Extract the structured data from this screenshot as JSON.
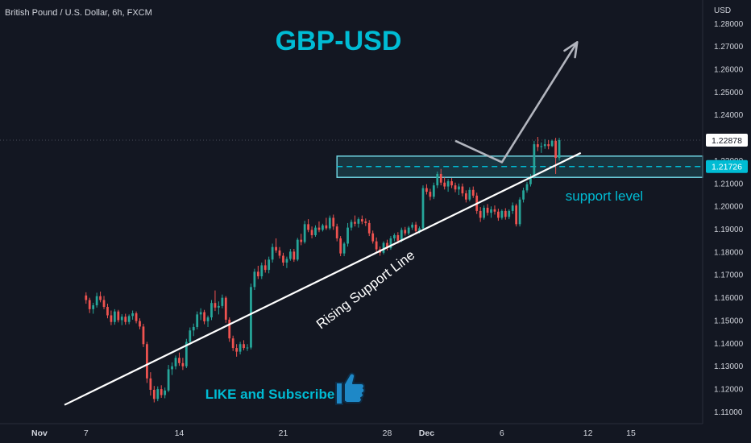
{
  "header": {
    "symbol": "British Pound / U.S. Dollar, 6h, FXCM"
  },
  "annotations": {
    "title": "GBP-USD",
    "support_level": "support level",
    "rising_support_line": "Rising Support Line",
    "like_subscribe": "LIKE and Subscribe"
  },
  "price_axis": {
    "currency": "USD",
    "current_price": "1.22878",
    "support_price": "1.21726"
  },
  "colors": {
    "background": "#131722",
    "up": "#26a69a",
    "down": "#ef5350",
    "title": "#00bcd4",
    "support_zone_border": "#6fd3e0",
    "support_zone_fill": "#1e4e5a",
    "current_price_tag": "#ffffff",
    "support_price_tag": "#00bcd4",
    "arrow": "#b2b5be",
    "trendline": "#ffffff",
    "thumb_icon": "#1e88c7"
  },
  "icons": {
    "like": "thumbs-up-icon",
    "projection": "arrow-up-right-icon"
  },
  "chart_data": {
    "type": "candlestick",
    "title": "GBP-USD",
    "ylabel": "USD",
    "ylim": [
      1.1075,
      1.2845
    ],
    "y_ticks": [
      1.11,
      1.12,
      1.13,
      1.14,
      1.15,
      1.16,
      1.17,
      1.18,
      1.19,
      1.2,
      1.21,
      1.22,
      1.23,
      1.24,
      1.25,
      1.26,
      1.27,
      1.28
    ],
    "x_ticks": [
      "Nov",
      "7",
      "14",
      "21",
      "28",
      "Dec",
      "6",
      "12",
      "15"
    ],
    "x_tick_index": [
      -13,
      0,
      26,
      55,
      84,
      95,
      116,
      140,
      152
    ],
    "x_range": [
      -24,
      172
    ],
    "current_price": 1.22878,
    "support_price": 1.21726,
    "support_zone": {
      "from_index": 70,
      "to_index": 172,
      "low": 1.2125,
      "high": 1.2218
    },
    "rising_support_line": {
      "from": [
        -6,
        1.1129
      ],
      "to": [
        138,
        1.2232
      ]
    },
    "projection": [
      [
        103,
        1.2285
      ],
      [
        116,
        1.2191
      ],
      [
        137,
        1.2717
      ]
    ],
    "candles": [
      [
        1.1608,
        1.1622,
        1.1572,
        1.1588
      ],
      [
        1.1588,
        1.1598,
        1.1531,
        1.1548
      ],
      [
        1.1548,
        1.1576,
        1.1528,
        1.1565
      ],
      [
        1.1565,
        1.162,
        1.1555,
        1.1605
      ],
      [
        1.1605,
        1.1625,
        1.1578,
        1.1588
      ],
      [
        1.1588,
        1.1606,
        1.1548,
        1.1558
      ],
      [
        1.1558,
        1.1572,
        1.1508,
        1.1521
      ],
      [
        1.1521,
        1.1542,
        1.1478,
        1.1492
      ],
      [
        1.1492,
        1.1548,
        1.148,
        1.1538
      ],
      [
        1.1538,
        1.1545,
        1.149,
        1.15
      ],
      [
        1.15,
        1.1526,
        1.1478,
        1.1515
      ],
      [
        1.1515,
        1.1528,
        1.148,
        1.1492
      ],
      [
        1.1492,
        1.1525,
        1.1482,
        1.1518
      ],
      [
        1.1518,
        1.1542,
        1.1502,
        1.153
      ],
      [
        1.153,
        1.1538,
        1.1486,
        1.1496
      ],
      [
        1.1496,
        1.1508,
        1.146,
        1.1472
      ],
      [
        1.1472,
        1.1484,
        1.1382,
        1.1395
      ],
      [
        1.1395,
        1.1405,
        1.1225,
        1.1245
      ],
      [
        1.1245,
        1.1272,
        1.117,
        1.1195
      ],
      [
        1.1195,
        1.1212,
        1.114,
        1.1155
      ],
      [
        1.1155,
        1.121,
        1.1145,
        1.1198
      ],
      [
        1.1198,
        1.1215,
        1.116,
        1.1172
      ],
      [
        1.1172,
        1.1205,
        1.1158,
        1.1192
      ],
      [
        1.1192,
        1.1304,
        1.1185,
        1.1285
      ],
      [
        1.1285,
        1.1315,
        1.126,
        1.1298
      ],
      [
        1.1298,
        1.1345,
        1.1285,
        1.1335
      ],
      [
        1.1335,
        1.1358,
        1.13,
        1.1312
      ],
      [
        1.1312,
        1.1335,
        1.1282,
        1.1298
      ],
      [
        1.1298,
        1.1418,
        1.129,
        1.1405
      ],
      [
        1.1405,
        1.1468,
        1.1392,
        1.1455
      ],
      [
        1.1455,
        1.1485,
        1.143,
        1.147
      ],
      [
        1.147,
        1.1538,
        1.146,
        1.1525
      ],
      [
        1.1525,
        1.1552,
        1.15,
        1.1535
      ],
      [
        1.1535,
        1.1545,
        1.1482,
        1.1495
      ],
      [
        1.1495,
        1.152,
        1.147,
        1.1512
      ],
      [
        1.1512,
        1.1588,
        1.15,
        1.1575
      ],
      [
        1.1575,
        1.163,
        1.154,
        1.1555
      ],
      [
        1.1555,
        1.1582,
        1.1525,
        1.1562
      ],
      [
        1.1562,
        1.1612,
        1.1552,
        1.1598
      ],
      [
        1.1598,
        1.1605,
        1.1488,
        1.1502
      ],
      [
        1.1502,
        1.1512,
        1.1405,
        1.142
      ],
      [
        1.142,
        1.1432,
        1.1365,
        1.1378
      ],
      [
        1.1378,
        1.1395,
        1.134,
        1.1362
      ],
      [
        1.1362,
        1.1405,
        1.135,
        1.1395
      ],
      [
        1.1395,
        1.1412,
        1.1368,
        1.1378
      ],
      [
        1.1378,
        1.1395,
        1.1365,
        1.138
      ],
      [
        1.138,
        1.166,
        1.1372,
        1.1645
      ],
      [
        1.1645,
        1.1725,
        1.1632,
        1.1712
      ],
      [
        1.1712,
        1.1738,
        1.168,
        1.1692
      ],
      [
        1.1692,
        1.1752,
        1.168,
        1.174
      ],
      [
        1.174,
        1.1765,
        1.1708,
        1.172
      ],
      [
        1.172,
        1.1778,
        1.1705,
        1.1765
      ],
      [
        1.1765,
        1.1835,
        1.1752,
        1.182
      ],
      [
        1.182,
        1.1858,
        1.1795,
        1.1805
      ],
      [
        1.1805,
        1.182,
        1.177,
        1.1782
      ],
      [
        1.1782,
        1.1795,
        1.1738,
        1.1752
      ],
      [
        1.1752,
        1.1778,
        1.1728,
        1.1768
      ],
      [
        1.1768,
        1.1812,
        1.176,
        1.18
      ],
      [
        1.18,
        1.1812,
        1.1755,
        1.1765
      ],
      [
        1.1765,
        1.186,
        1.1758,
        1.1852
      ],
      [
        1.1852,
        1.1878,
        1.1828,
        1.1842
      ],
      [
        1.1842,
        1.1935,
        1.1835,
        1.192
      ],
      [
        1.192,
        1.1942,
        1.1885,
        1.1895
      ],
      [
        1.1895,
        1.191,
        1.1858,
        1.1872
      ],
      [
        1.1872,
        1.1915,
        1.1865,
        1.1905
      ],
      [
        1.1905,
        1.1932,
        1.1885,
        1.1895
      ],
      [
        1.1895,
        1.1922,
        1.1888,
        1.1915
      ],
      [
        1.1915,
        1.1948,
        1.1895,
        1.1902
      ],
      [
        1.1902,
        1.1958,
        1.1895,
        1.1948
      ],
      [
        1.1948,
        1.1962,
        1.1895,
        1.191
      ],
      [
        1.191,
        1.1922,
        1.1845,
        1.1858
      ],
      [
        1.1858,
        1.1868,
        1.178,
        1.1792
      ],
      [
        1.1792,
        1.1842,
        1.178,
        1.1835
      ],
      [
        1.1835,
        1.1925,
        1.1822,
        1.1905
      ],
      [
        1.1905,
        1.194,
        1.1892,
        1.193
      ],
      [
        1.193,
        1.1958,
        1.191,
        1.1922
      ],
      [
        1.1922,
        1.195,
        1.1905,
        1.1942
      ],
      [
        1.1942,
        1.1958,
        1.192,
        1.1932
      ],
      [
        1.1932,
        1.1945,
        1.1912,
        1.1925
      ],
      [
        1.1925,
        1.1938,
        1.1868,
        1.188
      ],
      [
        1.188,
        1.1892,
        1.1835,
        1.1845
      ],
      [
        1.1845,
        1.1862,
        1.1795,
        1.181
      ],
      [
        1.181,
        1.1822,
        1.1782,
        1.1795
      ],
      [
        1.1795,
        1.1845,
        1.1788,
        1.1838
      ],
      [
        1.1838,
        1.1852,
        1.1805,
        1.1815
      ],
      [
        1.1815,
        1.1868,
        1.1808,
        1.1858
      ],
      [
        1.1858,
        1.188,
        1.1845,
        1.1872
      ],
      [
        1.1872,
        1.1885,
        1.1835,
        1.1848
      ],
      [
        1.1848,
        1.1905,
        1.1842,
        1.1895
      ],
      [
        1.1895,
        1.1908,
        1.187,
        1.188
      ],
      [
        1.188,
        1.1912,
        1.1872,
        1.1905
      ],
      [
        1.1905,
        1.1928,
        1.1895,
        1.1918
      ],
      [
        1.1918,
        1.193,
        1.188,
        1.189
      ],
      [
        1.189,
        1.191,
        1.188,
        1.1902
      ],
      [
        1.1902,
        1.209,
        1.1895,
        1.2078
      ],
      [
        1.2078,
        1.2095,
        1.205,
        1.2062
      ],
      [
        1.2062,
        1.2075,
        1.2025,
        1.204
      ],
      [
        1.204,
        1.2102,
        1.203,
        1.209
      ],
      [
        1.209,
        1.215,
        1.2078,
        1.214
      ],
      [
        1.214,
        1.2162,
        1.209,
        1.2102
      ],
      [
        1.2102,
        1.2125,
        1.2072,
        1.2085
      ],
      [
        1.2085,
        1.2118,
        1.2062,
        1.2108
      ],
      [
        1.2108,
        1.2122,
        1.2078,
        1.209
      ],
      [
        1.209,
        1.2102,
        1.206,
        1.2072
      ],
      [
        1.2072,
        1.2098,
        1.2048,
        1.2085
      ],
      [
        1.2085,
        1.2098,
        1.2042,
        1.2055
      ],
      [
        1.2055,
        1.2068,
        1.2015,
        1.2028
      ],
      [
        1.2028,
        1.2082,
        1.202,
        1.207
      ],
      [
        1.207,
        1.2085,
        1.2035,
        1.2045
      ],
      [
        1.2045,
        1.2058,
        1.1965,
        1.1978
      ],
      [
        1.1978,
        1.1995,
        1.193,
        1.1948
      ],
      [
        1.1948,
        1.2002,
        1.194,
        1.1992
      ],
      [
        1.1992,
        1.2008,
        1.1958,
        1.197
      ],
      [
        1.197,
        1.1998,
        1.1948,
        1.1985
      ],
      [
        1.1985,
        1.2002,
        1.1962,
        1.1975
      ],
      [
        1.1975,
        1.1988,
        1.1935,
        1.1948
      ],
      [
        1.1948,
        1.1985,
        1.194,
        1.1978
      ],
      [
        1.1978,
        1.199,
        1.194,
        1.1952
      ],
      [
        1.1952,
        1.1985,
        1.1942,
        1.1978
      ],
      [
        1.1978,
        1.2015,
        1.1965,
        1.2002
      ],
      [
        1.2002,
        1.201,
        1.191,
        1.192
      ],
      [
        1.192,
        1.2038,
        1.191,
        1.2028
      ],
      [
        1.2028,
        1.208,
        1.2015,
        1.2068
      ],
      [
        1.2068,
        1.2105,
        1.2058,
        1.2095
      ],
      [
        1.2095,
        1.214,
        1.2085,
        1.2128
      ],
      [
        1.2128,
        1.2285,
        1.212,
        1.227
      ],
      [
        1.227,
        1.2302,
        1.224,
        1.2258
      ],
      [
        1.2258,
        1.2278,
        1.2232,
        1.2262
      ],
      [
        1.2262,
        1.2292,
        1.225,
        1.227
      ],
      [
        1.227,
        1.2288,
        1.2248,
        1.2262
      ],
      [
        1.2262,
        1.229,
        1.2258,
        1.2285
      ],
      [
        1.2285,
        1.2298,
        1.214,
        1.221
      ],
      [
        1.221,
        1.2298,
        1.2198,
        1.2288
      ]
    ]
  }
}
